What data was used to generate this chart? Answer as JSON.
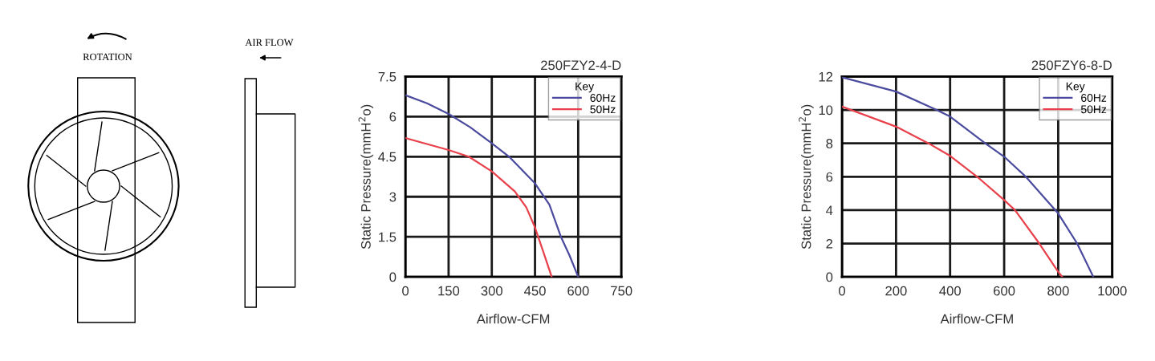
{
  "chart_data": [
    {
      "type": "other",
      "annotations": [
        "ROTATION",
        "AIR FLOW"
      ]
    },
    {
      "type": "line",
      "title": "250FZY2-4-D",
      "xlabel": "Airflow-CFM",
      "ylabel": "Static Pressure(mmH$^{2}$o)",
      "legend_title": "Key",
      "legend": "top right",
      "grid": true,
      "xlim": [
        0,
        750
      ],
      "xticks": [
        0,
        150,
        300,
        450,
        600,
        750
      ],
      "ylim": [
        0,
        7.5
      ],
      "yticks": [
        0,
        1.5,
        3,
        4.5,
        6,
        7.5
      ],
      "series": [
        {
          "name": "60Hz",
          "color": "#4a4a9e",
          "x": [
            0,
            75,
            150,
            225,
            300,
            360,
            450,
            500,
            540,
            570,
            600
          ],
          "values": [
            6.8,
            6.5,
            6.1,
            5.6,
            5.0,
            4.5,
            3.5,
            2.7,
            1.5,
            0.8,
            0
          ]
        },
        {
          "name": "50Hz",
          "color": "#e8414b",
          "x": [
            0,
            150,
            220,
            300,
            380,
            420,
            450,
            480,
            508
          ],
          "values": [
            5.2,
            4.75,
            4.5,
            3.95,
            3.2,
            2.6,
            1.85,
            0.9,
            0
          ]
        }
      ]
    },
    {
      "type": "line",
      "title": "250FZY6-8-D",
      "xlabel": "Airflow-CFM",
      "ylabel": "Static Pressure(mmH$^{2}$o)",
      "legend_title": "Key",
      "legend": "top right",
      "grid": true,
      "xlim": [
        0,
        1000
      ],
      "xticks": [
        0,
        200,
        400,
        600,
        800,
        1000
      ],
      "ylim": [
        0,
        12
      ],
      "yticks": [
        0,
        2,
        4,
        6,
        8,
        10,
        12
      ],
      "series": [
        {
          "name": "60Hz",
          "color": "#4a4a9e",
          "x": [
            0,
            200,
            350,
            400,
            530,
            600,
            680,
            800,
            870,
            930
          ],
          "values": [
            11.95,
            11.1,
            10.0,
            9.6,
            8.0,
            7.2,
            6.0,
            3.8,
            2.0,
            0
          ]
        },
        {
          "name": "50Hz",
          "color": "#e8414b",
          "x": [
            0,
            200,
            320,
            400,
            500,
            600,
            640,
            730,
            800,
            815
          ],
          "values": [
            10.2,
            9.0,
            8.0,
            7.25,
            6.0,
            4.6,
            4.0,
            2.0,
            0.3,
            0
          ]
        }
      ]
    }
  ]
}
